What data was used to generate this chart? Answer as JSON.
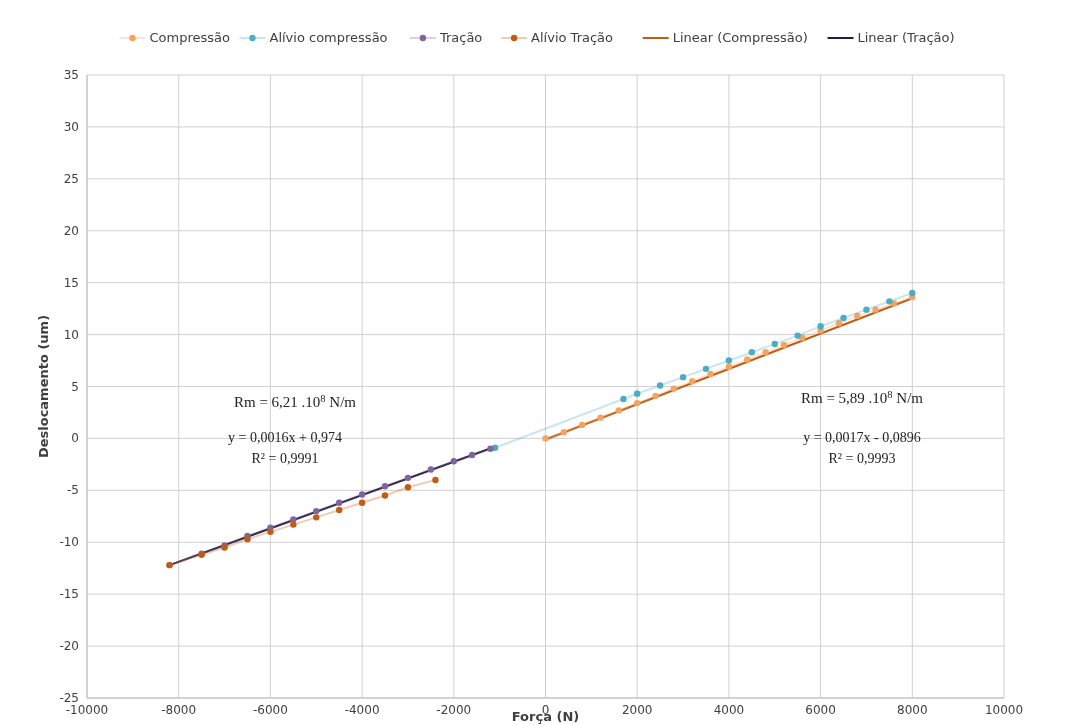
{
  "chart_data": {
    "type": "line",
    "xlabel": "Força (N)",
    "ylabel": "Deslocamento (um)",
    "xlim": [
      -10000,
      10000
    ],
    "xticks": [
      -10000,
      -8000,
      -6000,
      -4000,
      -2000,
      0,
      2000,
      4000,
      6000,
      8000,
      10000
    ],
    "ylim": [
      -25,
      35
    ],
    "yticks": [
      -25,
      -20,
      -15,
      -10,
      -5,
      0,
      5,
      10,
      15,
      20,
      25,
      30,
      35
    ],
    "grid": true,
    "legend": "top",
    "marker": "circle",
    "series": [
      {
        "name": "Compressão",
        "color": "#f4a460",
        "x": [
          0,
          400,
          800,
          1200,
          1600,
          2000,
          2400,
          2800,
          3200,
          3600,
          4000,
          4400,
          4800,
          5200,
          5600,
          6000,
          6400,
          6800,
          7200,
          7600,
          8000
        ],
        "values": [
          0,
          0.6,
          1.3,
          2,
          2.7,
          3.4,
          4.1,
          4.8,
          5.5,
          6.2,
          6.9,
          7.6,
          8.3,
          9,
          9.7,
          10.4,
          11.1,
          11.8,
          12.4,
          13,
          13.6
        ]
      },
      {
        "name": "Alívio compressão",
        "color": "#4bacc6",
        "x": [
          8000,
          7500,
          7000,
          6500,
          6000,
          5500,
          5000,
          4500,
          4000,
          3500,
          3000,
          2500,
          2000,
          1700,
          -1100
        ],
        "values": [
          14,
          13.2,
          12.4,
          11.6,
          10.8,
          9.9,
          9.1,
          8.3,
          7.5,
          6.7,
          5.9,
          5.1,
          4.3,
          3.8,
          -0.9
        ]
      },
      {
        "name": "Tração",
        "color": "#8064a2",
        "x": [
          -1200,
          -1600,
          -2000,
          -2500,
          -3000,
          -3500,
          -4000,
          -4500,
          -5000,
          -5500,
          -6000,
          -6500,
          -7000,
          -7500,
          -8200
        ],
        "values": [
          -1,
          -1.6,
          -2.2,
          -3,
          -3.8,
          -4.6,
          -5.4,
          -6.2,
          -7,
          -7.8,
          -8.6,
          -9.4,
          -10.3,
          -11.1,
          -12.2
        ]
      },
      {
        "name": "Alívio Tração",
        "color": "#c55a11",
        "x": [
          -2400,
          -3000,
          -3500,
          -4000,
          -4500,
          -5000,
          -5500,
          -6000,
          -6500,
          -7000,
          -7500,
          -8200
        ],
        "values": [
          -4,
          -4.7,
          -5.5,
          -6.2,
          -6.9,
          -7.6,
          -8.3,
          -9,
          -9.7,
          -10.5,
          -11.2,
          -12.2
        ]
      },
      {
        "name": "Linear (Compressão)",
        "color": "#c55a11",
        "marker": "none",
        "x": [
          0,
          8000
        ],
        "values": [
          -0.1,
          13.5
        ]
      },
      {
        "name": "Linear (Tração)",
        "color": "#1f1f3f",
        "marker": "none",
        "x": [
          -8200,
          -1100
        ],
        "values": [
          -12.2,
          -0.8
        ]
      }
    ],
    "annotations": [
      "Rm = 6,21 .10$^{8}$ N/m",
      "y = 0,0016x + 0,974",
      "R² = 0,9991",
      "Rm = 5,89 .10$^{8}$ N/m",
      "y = 0,0017x - 0,0896",
      "R² = 0,9993"
    ]
  }
}
